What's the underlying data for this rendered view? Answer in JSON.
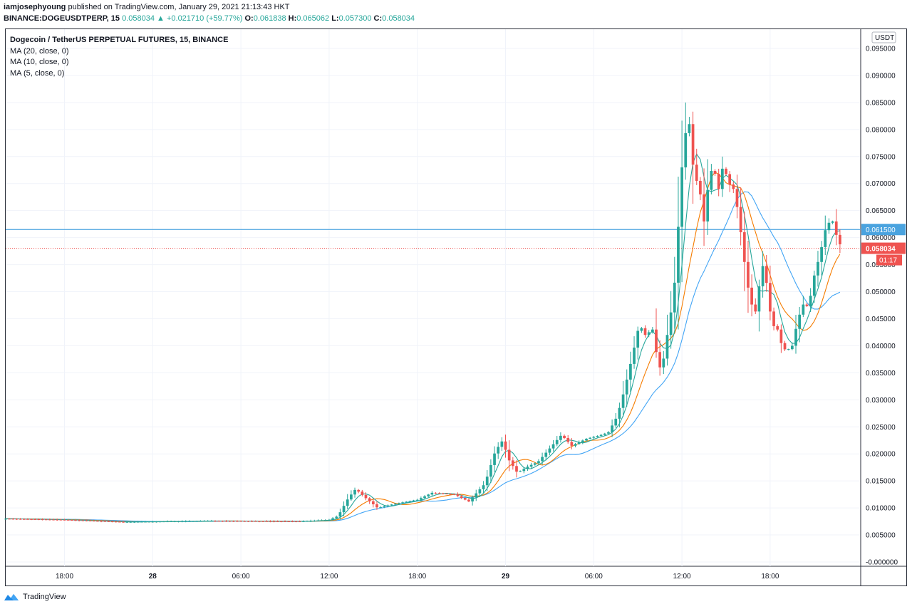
{
  "header": {
    "author": "iamjosephyoung",
    "published_text": "published on TradingView.com, January 29, 2021 21:13:43 HKT",
    "symbol": "BINANCE:DOGEUSDTPERP, 15",
    "last_price": "0.058034",
    "change": "+0.021710 (+59.77%)",
    "o_label": "O:",
    "o_value": "0.061838",
    "h_label": "H:",
    "h_value": "0.065062",
    "l_label": "L:",
    "l_value": "0.057300",
    "c_label": "C:",
    "c_value": "0.058034"
  },
  "legend": {
    "title": "Dogecoin / TetherUS PERPETUAL FUTURES, 15, BINANCE",
    "ma20": "MA (20, close, 0)",
    "ma10": "MA (10, close, 0)",
    "ma5": "MA (5, close, 0)"
  },
  "price_scale": {
    "currency": "USDT",
    "ticks": [
      "0.095000",
      "0.090000",
      "0.085000",
      "0.080000",
      "0.075000",
      "0.070000",
      "0.065000",
      "0.060000",
      "0.055000",
      "0.050000",
      "0.045000",
      "0.040000",
      "0.035000",
      "0.030000",
      "0.025000",
      "0.020000",
      "0.015000",
      "0.010000",
      "0.005000",
      "-0.000000"
    ],
    "horizontal_line_label": "0.061500",
    "last_price_label": "0.058034",
    "countdown": "01:17"
  },
  "time_scale": {
    "labels": [
      {
        "text": "18:00",
        "hour": 18,
        "bold": false
      },
      {
        "text": "28",
        "hour": 24,
        "bold": true
      },
      {
        "text": "06:00",
        "hour": 30,
        "bold": false
      },
      {
        "text": "12:00",
        "hour": 36,
        "bold": false
      },
      {
        "text": "18:00",
        "hour": 42,
        "bold": false
      },
      {
        "text": "29",
        "hour": 48,
        "bold": true
      },
      {
        "text": "06:00",
        "hour": 54,
        "bold": false
      },
      {
        "text": "12:00",
        "hour": 60,
        "bold": false
      },
      {
        "text": "18:00",
        "hour": 66,
        "bold": false
      }
    ]
  },
  "colors": {
    "up": "#26a69a",
    "down": "#ef5350",
    "ma20": "#42a5f5",
    "ma10": "#f57c00",
    "ma5": "#26a69a",
    "hline": "#4aa3df",
    "grid": "#f0f3fa"
  },
  "chart_data": {
    "type": "candlestick",
    "interval_minutes": 15,
    "x_unit": "hours since Jan 27 00:00",
    "x_range": [
      14.0,
      70.9
    ],
    "ylim": [
      -0.002,
      0.0985
    ],
    "horizontal_line": 0.0615,
    "last_price": 0.058034,
    "keypoints": [
      {
        "h": 14.0,
        "p": 0.008
      },
      {
        "h": 18.0,
        "p": 0.0078
      },
      {
        "h": 22.0,
        "p": 0.0074
      },
      {
        "h": 28.0,
        "p": 0.0076
      },
      {
        "h": 34.0,
        "p": 0.0075
      },
      {
        "h": 36.0,
        "p": 0.0078
      },
      {
        "h": 36.6,
        "p": 0.0085
      },
      {
        "h": 37.3,
        "p": 0.0118
      },
      {
        "h": 37.8,
        "p": 0.0135
      },
      {
        "h": 38.5,
        "p": 0.0118
      },
      {
        "h": 39.3,
        "p": 0.01
      },
      {
        "h": 40.5,
        "p": 0.0108
      },
      {
        "h": 42.0,
        "p": 0.0115
      },
      {
        "h": 43.0,
        "p": 0.0128
      },
      {
        "h": 44.5,
        "p": 0.0125
      },
      {
        "h": 45.5,
        "p": 0.0112
      },
      {
        "h": 46.6,
        "p": 0.0145
      },
      {
        "h": 47.3,
        "p": 0.0205
      },
      {
        "h": 47.8,
        "p": 0.0225
      },
      {
        "h": 48.2,
        "p": 0.019
      },
      {
        "h": 48.8,
        "p": 0.0165
      },
      {
        "h": 49.6,
        "p": 0.0178
      },
      {
        "h": 50.2,
        "p": 0.0185
      },
      {
        "h": 51.0,
        "p": 0.021
      },
      {
        "h": 51.8,
        "p": 0.0235
      },
      {
        "h": 52.5,
        "p": 0.0215
      },
      {
        "h": 53.5,
        "p": 0.0228
      },
      {
        "h": 54.5,
        "p": 0.0235
      },
      {
        "h": 55.0,
        "p": 0.024
      },
      {
        "h": 55.6,
        "p": 0.027
      },
      {
        "h": 56.1,
        "p": 0.032
      },
      {
        "h": 56.6,
        "p": 0.0378
      },
      {
        "h": 57.1,
        "p": 0.044
      },
      {
        "h": 57.5,
        "p": 0.042
      },
      {
        "h": 58.0,
        "p": 0.043
      },
      {
        "h": 58.3,
        "p": 0.038
      },
      {
        "h": 58.6,
        "p": 0.035
      },
      {
        "h": 59.0,
        "p": 0.042
      },
      {
        "h": 59.3,
        "p": 0.047
      },
      {
        "h": 59.6,
        "p": 0.054
      },
      {
        "h": 59.9,
        "p": 0.07
      },
      {
        "h": 60.2,
        "p": 0.079
      },
      {
        "h": 60.5,
        "p": 0.081
      },
      {
        "h": 60.8,
        "p": 0.072
      },
      {
        "h": 61.2,
        "p": 0.069
      },
      {
        "h": 61.5,
        "p": 0.063
      },
      {
        "h": 61.8,
        "p": 0.07
      },
      {
        "h": 62.1,
        "p": 0.0735
      },
      {
        "h": 62.5,
        "p": 0.069
      },
      {
        "h": 62.8,
        "p": 0.0735
      },
      {
        "h": 63.2,
        "p": 0.07
      },
      {
        "h": 63.5,
        "p": 0.069
      },
      {
        "h": 63.8,
        "p": 0.065
      },
      {
        "h": 64.1,
        "p": 0.059
      },
      {
        "h": 64.4,
        "p": 0.052
      },
      {
        "h": 64.8,
        "p": 0.047
      },
      {
        "h": 65.1,
        "p": 0.046
      },
      {
        "h": 65.4,
        "p": 0.056
      },
      {
        "h": 65.8,
        "p": 0.051
      },
      {
        "h": 66.1,
        "p": 0.044
      },
      {
        "h": 66.5,
        "p": 0.043
      },
      {
        "h": 66.8,
        "p": 0.04
      },
      {
        "h": 67.1,
        "p": 0.039
      },
      {
        "h": 67.5,
        "p": 0.04
      },
      {
        "h": 67.9,
        "p": 0.045
      },
      {
        "h": 68.3,
        "p": 0.048
      },
      {
        "h": 68.6,
        "p": 0.047
      },
      {
        "h": 69.0,
        "p": 0.053
      },
      {
        "h": 69.4,
        "p": 0.057
      },
      {
        "h": 69.8,
        "p": 0.062
      },
      {
        "h": 70.2,
        "p": 0.0635
      },
      {
        "h": 70.6,
        "p": 0.0595
      },
      {
        "h": 70.9,
        "p": 0.058034
      }
    ]
  },
  "footer": {
    "brand": "TradingView"
  }
}
